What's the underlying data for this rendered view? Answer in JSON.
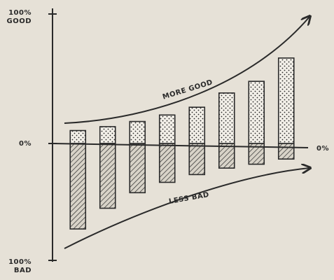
{
  "chart_data": {
    "type": "bar",
    "categories": [
      null,
      null,
      null,
      null,
      null,
      null,
      null,
      null
    ],
    "series": [
      {
        "values": [
          10,
          13,
          17,
          22,
          28,
          39,
          48,
          66
        ],
        "pattern": "dots",
        "color": "#2a2a2a"
      },
      {
        "values": [
          -66,
          -50,
          -38,
          -30,
          -24,
          -19,
          -16,
          -12
        ],
        "pattern": "hatch",
        "color": "#2a2a2a"
      }
    ],
    "ylim": [
      -100,
      100
    ],
    "yticks": [
      {
        "value": 100,
        "label": "100%"
      },
      {
        "value": 0,
        "label": "0%"
      },
      {
        "value": -100,
        "label": "100%"
      }
    ],
    "annotations": {
      "top": "GOOD",
      "bottom": "BAD",
      "right": "0%",
      "upper_curve": "MORE GOOD",
      "lower_curve": "LESS BAD"
    }
  }
}
